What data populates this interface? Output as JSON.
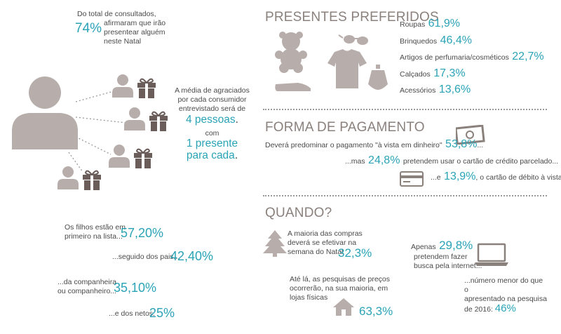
{
  "top_left": {
    "pct": "74%",
    "line1": "Do total de consultados,",
    "line2": "afirmaram que irão",
    "line3": "presentear alguém",
    "line4": "neste Natal"
  },
  "average": {
    "line1": "A média de agraciados",
    "line2": "por cada consumidor",
    "line3": "entrevistado será de",
    "highlight1": "4 pessoas",
    "dot": ".",
    "with": "com",
    "highlight2": "1 presente",
    "highlight3": "para cada",
    "dot2": "."
  },
  "relations": [
    {
      "text1": "Os filhos estão em",
      "text2": "primeiro na lista...",
      "pct": "57,20%"
    },
    {
      "text1": "...seguido dos pais...",
      "text2": "",
      "pct": "42,40%"
    },
    {
      "text1": "...da companheira",
      "text2": "ou companheiro...",
      "pct": "35,10%"
    },
    {
      "text1": "...e dos netos.",
      "text2": "",
      "pct": "25%"
    }
  ],
  "gifts": {
    "heading": "PRESENTES PREFERIDOS",
    "items": [
      {
        "label": "Roupas",
        "pct": "61,9%"
      },
      {
        "label": "Brinquedos",
        "pct": "46,4%"
      },
      {
        "label": "Artigos de perfumaria/cosméticos",
        "pct": "22,7%"
      },
      {
        "label": "Calçados",
        "pct": "17,3%"
      },
      {
        "label": "Acessórios",
        "pct": "13,6%"
      }
    ]
  },
  "payment": {
    "heading": "FORMA DE PAGAMENTO",
    "line1_text": "Deverá predominar o pagamento \"à vista em dinheiro\"",
    "line1_pct": "53,8%",
    "line1_suffix": "...",
    "line2_prefix": "...mas",
    "line2_pct": "24,8%",
    "line2_text": "pretendem usar o cartão de crédito parcelado...",
    "line3_prefix": "...e",
    "line3_pct": "13,9%",
    "line3_text": ", o cartão de débito à vista."
  },
  "when": {
    "heading": "QUANDO?",
    "block1": {
      "l1": "A maioria das compras",
      "l2": "deverá se efetivar na",
      "l3": "semana do Natal",
      "pct": "32,3%"
    },
    "block2": {
      "l1": "Até lá, as pesquisas de preços",
      "l2": "ocorrerão, na sua maioria, em",
      "l3": "lojas físicas",
      "pct": "63,3%"
    },
    "block3": {
      "prefix": "Apenas",
      "pct": "29,8%",
      "l2": "pretendem fazer",
      "l3": "busca pela internet..."
    },
    "block4": {
      "l1": "...número menor do que o",
      "l2": "apresentado na pesquisa",
      "l3": "de 2016:",
      "pct": "46%"
    }
  },
  "colors": {
    "accent": "#2aa3b6",
    "icon_gray": "#b7adaa",
    "text": "#4a4a4a"
  }
}
